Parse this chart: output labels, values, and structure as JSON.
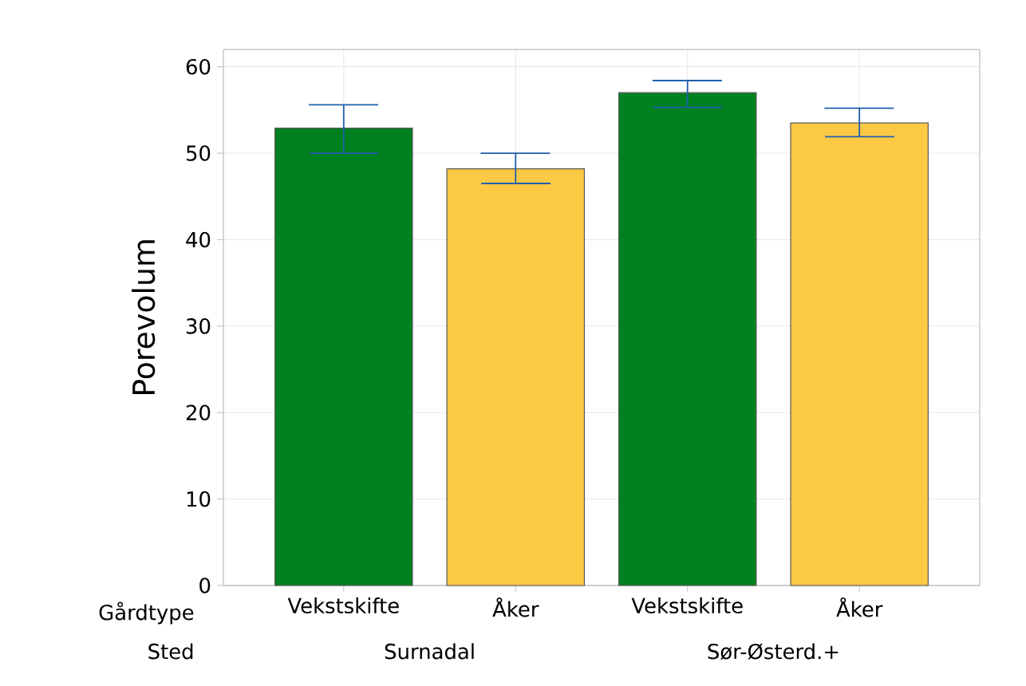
{
  "chart_data": {
    "type": "bar",
    "ylabel": "Porevolum",
    "categories": [
      "Vekstskifte",
      "Åker",
      "Vekstskifte",
      "Åker"
    ],
    "values": [
      52.9,
      48.2,
      57.0,
      53.5
    ],
    "colors": [
      "#008120",
      "#fcc944",
      "#008120",
      "#fcc944"
    ],
    "errors": [
      [
        50.0,
        55.6
      ],
      [
        46.5,
        50.0
      ],
      [
        55.3,
        58.4
      ],
      [
        51.9,
        55.2
      ]
    ],
    "ylim": [
      0,
      62
    ],
    "yticks": [
      0,
      10,
      20,
      30,
      40,
      50,
      60
    ],
    "grid": true,
    "annotations": [
      "Gårdtype",
      "Sted",
      "Surnadal",
      "Sør-Østerd.+"
    ]
  }
}
